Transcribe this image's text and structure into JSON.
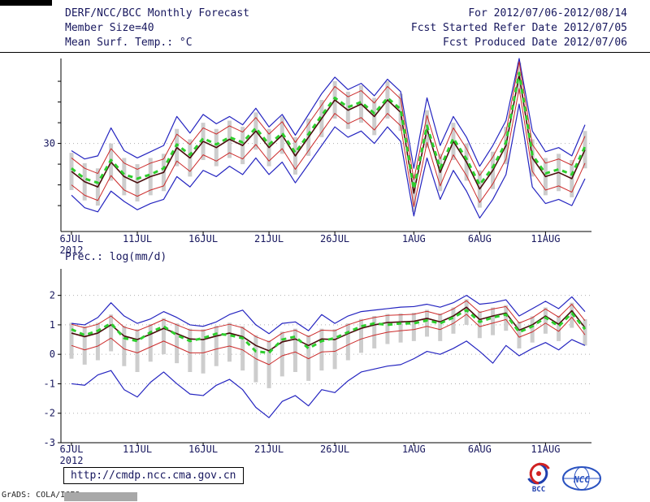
{
  "page": {
    "header": {
      "title": "DERF/NCC/BCC Monthly Forecast",
      "member_size": "Member Size=40",
      "temp_label": "Mean Surf. Temp.: °C",
      "date_range": "For 2012/07/06-2012/08/14",
      "refer_date": "Fcst Started Refer Date 2012/07/05",
      "produced_date": "Fcst Produced Date 2012/07/06"
    },
    "prec_label": "Prec.: log(mm/d)",
    "footer": {
      "url": "http://cmdp.ncc.cma.gov.cn",
      "credit": "GrADS: COLA/IGES",
      "bcc_label": "BCC",
      "ncc_label": "NCC"
    }
  },
  "colors": {
    "text": "#17175e",
    "axis": "#000000",
    "grid": "#b0b0b0",
    "envelope": "#2424c0",
    "std": "#cc2b2b",
    "mean": "#4a0c0c",
    "median": "#2ece2e",
    "bar": "#cdcdcd"
  },
  "chart_data": [
    {
      "type": "line",
      "title": "Mean Surf. Temp.: °C",
      "ylabel": "°C",
      "n_points": 40,
      "ylim": [
        21.5,
        38.2
      ],
      "x_axis_year": "2012",
      "x_ticks": [
        {
          "index": 0,
          "label": "6JUL"
        },
        {
          "index": 5,
          "label": "11JUL"
        },
        {
          "index": 10,
          "label": "16JUL"
        },
        {
          "index": 15,
          "label": "21JUL"
        },
        {
          "index": 20,
          "label": "26JUL"
        },
        {
          "index": 26,
          "label": "1AUG"
        },
        {
          "index": 31,
          "label": "6AUG"
        },
        {
          "index": 36,
          "label": "11AUG"
        }
      ],
      "y_ticks": [
        {
          "value": 24,
          "label": ""
        },
        {
          "value": 26,
          "label": ""
        },
        {
          "value": 28,
          "label": ""
        },
        {
          "value": 30,
          "label": "30"
        },
        {
          "value": 32,
          "label": ""
        },
        {
          "value": 34,
          "label": ""
        },
        {
          "value": 36,
          "label": ""
        }
      ],
      "series": [
        {
          "name": "ensemble-spread-bar",
          "type": "bar",
          "color": "#cdcdcd",
          "width": 5,
          "top": [
            29.1,
            28.1,
            27.6,
            30.0,
            28.6,
            28.0,
            28.6,
            29.0,
            31.4,
            30.4,
            32.0,
            31.4,
            32.2,
            31.6,
            33.0,
            31.4,
            32.6,
            30.6,
            32.4,
            34.2,
            36.0,
            35.0,
            35.6,
            34.4,
            36.0,
            34.8,
            27.0,
            33.2,
            29.0,
            32.0,
            30.0,
            27.4,
            29.2,
            31.6,
            37.8,
            30.4,
            28.6,
            29.0,
            28.4,
            31.2
          ],
          "bottom": [
            25.5,
            24.5,
            24.0,
            26.4,
            25.0,
            24.4,
            25.0,
            25.4,
            27.8,
            26.8,
            28.4,
            27.8,
            28.6,
            28.0,
            29.4,
            27.8,
            29.0,
            27.0,
            28.8,
            30.6,
            32.4,
            31.4,
            32.0,
            30.8,
            32.4,
            31.2,
            23.4,
            29.6,
            25.4,
            28.4,
            26.4,
            23.8,
            25.6,
            28.0,
            34.8,
            26.8,
            25.0,
            25.4,
            24.8,
            27.6
          ]
        },
        {
          "name": "ensemble-max",
          "type": "line",
          "color": "#2424c0",
          "width": 1.2,
          "values": [
            29.3,
            28.5,
            28.8,
            31.5,
            29.3,
            28.6,
            29.2,
            29.8,
            32.6,
            31.0,
            32.8,
            31.9,
            32.6,
            31.8,
            33.4,
            31.6,
            32.8,
            30.8,
            32.8,
            34.8,
            36.4,
            35.2,
            35.8,
            34.6,
            36.2,
            35.0,
            27.6,
            34.4,
            29.8,
            32.6,
            30.6,
            27.8,
            29.8,
            32.2,
            38.2,
            31.2,
            29.2,
            29.6,
            28.8,
            31.8
          ]
        },
        {
          "name": "ensemble-min",
          "type": "line",
          "color": "#2424c0",
          "width": 1.2,
          "values": [
            25.0,
            23.8,
            23.4,
            25.4,
            24.4,
            23.6,
            24.2,
            24.6,
            26.8,
            25.8,
            27.4,
            26.8,
            27.8,
            27.0,
            28.6,
            27.0,
            28.2,
            26.2,
            28.0,
            29.8,
            31.6,
            30.6,
            31.2,
            30.0,
            31.6,
            30.2,
            23.0,
            28.6,
            24.6,
            27.4,
            25.4,
            22.8,
            24.6,
            27.0,
            33.8,
            25.8,
            24.2,
            24.6,
            24.0,
            26.6
          ]
        },
        {
          "name": "mean-plus-std",
          "type": "line",
          "color": "#cc2b2b",
          "width": 1,
          "values": [
            28.6,
            27.6,
            27.1,
            29.5,
            28.1,
            27.5,
            28.1,
            28.5,
            30.9,
            29.9,
            31.5,
            30.9,
            31.7,
            31.1,
            32.5,
            30.9,
            32.1,
            30.1,
            31.9,
            33.7,
            35.5,
            34.5,
            35.1,
            33.9,
            35.5,
            34.3,
            26.5,
            32.7,
            28.5,
            31.5,
            29.5,
            26.9,
            28.7,
            31.1,
            37.9,
            29.9,
            28.1,
            28.5,
            27.9,
            30.7
          ]
        },
        {
          "name": "mean-minus-std",
          "type": "line",
          "color": "#cc2b2b",
          "width": 1,
          "values": [
            26.0,
            25.0,
            24.5,
            26.9,
            25.5,
            24.9,
            25.5,
            25.9,
            28.3,
            27.3,
            28.9,
            28.3,
            29.1,
            28.5,
            29.9,
            28.3,
            29.5,
            27.5,
            29.3,
            31.1,
            32.9,
            31.9,
            32.5,
            31.3,
            32.9,
            31.7,
            23.9,
            30.1,
            25.9,
            28.9,
            26.9,
            24.3,
            26.1,
            28.5,
            35.3,
            27.3,
            25.5,
            25.9,
            25.3,
            28.1
          ]
        },
        {
          "name": "ensemble-mean",
          "type": "line",
          "color": "#4a0c0c",
          "width": 1.6,
          "values": [
            27.3,
            26.3,
            25.8,
            28.2,
            26.8,
            26.2,
            26.8,
            27.2,
            29.6,
            28.6,
            30.2,
            29.6,
            30.4,
            29.8,
            31.2,
            29.6,
            30.8,
            28.8,
            30.6,
            32.4,
            34.2,
            33.2,
            33.8,
            32.6,
            34.2,
            33.0,
            25.2,
            31.4,
            27.2,
            30.2,
            28.2,
            25.6,
            27.4,
            29.8,
            36.6,
            28.6,
            26.8,
            27.2,
            26.6,
            29.4
          ]
        },
        {
          "name": "ensemble-median",
          "type": "line",
          "color": "#2ece2e",
          "width": 3,
          "dash": "6,5",
          "values": [
            27.6,
            26.6,
            26.2,
            28.4,
            27.0,
            26.6,
            27.0,
            27.6,
            29.9,
            28.9,
            30.5,
            29.9,
            30.6,
            30.1,
            31.5,
            29.9,
            31.0,
            29.1,
            30.9,
            32.7,
            34.4,
            33.5,
            34.0,
            32.9,
            34.4,
            33.3,
            25.6,
            31.7,
            27.6,
            30.5,
            28.5,
            26.0,
            27.7,
            30.1,
            36.8,
            28.9,
            27.1,
            27.5,
            27.0,
            29.7
          ]
        }
      ]
    },
    {
      "type": "line",
      "title": "Prec.: log(mm/d)",
      "ylabel": "log(mm/d)",
      "n_points": 40,
      "ylim": [
        -3,
        2.9
      ],
      "x_axis_year": "2012",
      "x_ticks": [
        {
          "index": 0,
          "label": "6JUL"
        },
        {
          "index": 5,
          "label": "11JUL"
        },
        {
          "index": 10,
          "label": "16JUL"
        },
        {
          "index": 15,
          "label": "21JUL"
        },
        {
          "index": 20,
          "label": "26JUL"
        },
        {
          "index": 26,
          "label": "1AUG"
        },
        {
          "index": 31,
          "label": "6AUG"
        },
        {
          "index": 36,
          "label": "11AUG"
        }
      ],
      "y_ticks": [
        {
          "value": -3,
          "label": "-3"
        },
        {
          "value": -2,
          "label": "-2"
        },
        {
          "value": -1,
          "label": "-1"
        },
        {
          "value": 0,
          "label": "0"
        },
        {
          "value": 1,
          "label": "1"
        },
        {
          "value": 2,
          "label": "2"
        }
      ],
      "series": [
        {
          "name": "ensemble-spread-bar",
          "type": "bar",
          "color": "#cdcdcd",
          "width": 5,
          "top": [
            1.07,
            0.95,
            1.07,
            1.35,
            0.97,
            0.85,
            1.03,
            1.23,
            1.05,
            0.87,
            0.85,
            0.97,
            1.07,
            0.95,
            0.65,
            0.47,
            0.77,
            0.87,
            0.65,
            0.87,
            0.85,
            1.05,
            1.2,
            1.3,
            1.37,
            1.39,
            1.41,
            1.51,
            1.39,
            1.59,
            1.87,
            1.47,
            1.59,
            1.67,
            1.11,
            1.29,
            1.59,
            1.31,
            1.75,
            1.19
          ],
          "bottom": [
            -0.15,
            -0.35,
            -0.2,
            0.1,
            -0.4,
            -0.6,
            -0.25,
            0.0,
            -0.3,
            -0.6,
            -0.65,
            -0.4,
            -0.25,
            -0.55,
            -0.95,
            -1.15,
            -0.75,
            -0.6,
            -0.9,
            -0.55,
            -0.5,
            -0.2,
            0.05,
            0.2,
            0.35,
            0.4,
            0.45,
            0.6,
            0.45,
            0.7,
            1.0,
            0.55,
            0.65,
            0.8,
            0.2,
            0.4,
            0.7,
            0.45,
            0.9,
            0.3
          ]
        },
        {
          "name": "ensemble-max",
          "type": "line",
          "color": "#2424c0",
          "width": 1.2,
          "values": [
            1.05,
            1.0,
            1.25,
            1.75,
            1.3,
            1.05,
            1.2,
            1.45,
            1.25,
            1.0,
            0.95,
            1.1,
            1.35,
            1.5,
            1.0,
            0.7,
            1.05,
            1.1,
            0.8,
            1.35,
            1.05,
            1.3,
            1.45,
            1.5,
            1.55,
            1.6,
            1.62,
            1.7,
            1.6,
            1.75,
            2.0,
            1.7,
            1.75,
            1.85,
            1.3,
            1.55,
            1.8,
            1.55,
            1.95,
            1.45
          ]
        },
        {
          "name": "ensemble-min",
          "type": "line",
          "color": "#2424c0",
          "width": 1.2,
          "values": [
            -1.0,
            -1.05,
            -0.7,
            -0.55,
            -1.2,
            -1.45,
            -0.95,
            -0.6,
            -1.0,
            -1.35,
            -1.4,
            -1.05,
            -0.85,
            -1.2,
            -1.8,
            -2.15,
            -1.6,
            -1.4,
            -1.75,
            -1.2,
            -1.3,
            -0.9,
            -0.6,
            -0.5,
            -0.4,
            -0.35,
            -0.15,
            0.1,
            0.0,
            0.2,
            0.45,
            0.1,
            -0.3,
            0.3,
            -0.05,
            0.2,
            0.4,
            0.15,
            0.5,
            0.3
          ]
        },
        {
          "name": "mean-plus-std",
          "type": "line",
          "color": "#cc2b2b",
          "width": 1,
          "values": [
            1.02,
            0.9,
            1.02,
            1.3,
            0.92,
            0.8,
            0.98,
            1.18,
            1.0,
            0.82,
            0.8,
            0.92,
            1.02,
            0.9,
            0.6,
            0.42,
            0.72,
            0.82,
            0.6,
            0.82,
            0.8,
            1.0,
            1.15,
            1.25,
            1.32,
            1.34,
            1.36,
            1.46,
            1.34,
            1.54,
            1.82,
            1.42,
            1.54,
            1.62,
            1.06,
            1.24,
            1.54,
            1.26,
            1.7,
            1.14
          ]
        },
        {
          "name": "mean-minus-std",
          "type": "line",
          "color": "#cc2b2b",
          "width": 1,
          "values": [
            0.3,
            0.15,
            0.28,
            0.55,
            0.18,
            0.05,
            0.25,
            0.45,
            0.25,
            0.05,
            0.05,
            0.18,
            0.28,
            0.15,
            -0.15,
            -0.35,
            -0.05,
            0.08,
            -0.15,
            0.08,
            0.1,
            0.32,
            0.52,
            0.65,
            0.75,
            0.8,
            0.84,
            0.95,
            0.84,
            1.05,
            1.36,
            0.94,
            1.06,
            1.18,
            0.58,
            0.76,
            1.06,
            0.78,
            1.26,
            0.66
          ]
        },
        {
          "name": "ensemble-mean",
          "type": "line",
          "color": "#4a0c0c",
          "width": 1.6,
          "values": [
            0.72,
            0.6,
            0.72,
            1.0,
            0.62,
            0.5,
            0.68,
            0.88,
            0.7,
            0.52,
            0.5,
            0.62,
            0.72,
            0.6,
            0.3,
            0.12,
            0.42,
            0.52,
            0.3,
            0.52,
            0.5,
            0.7,
            0.88,
            1.0,
            1.08,
            1.1,
            1.12,
            1.22,
            1.1,
            1.3,
            1.6,
            1.18,
            1.3,
            1.4,
            0.82,
            1.0,
            1.3,
            1.02,
            1.48,
            0.9
          ]
        },
        {
          "name": "ensemble-median",
          "type": "line",
          "color": "#2ece2e",
          "width": 3,
          "dash": "6,5",
          "values": [
            0.85,
            0.65,
            0.8,
            1.05,
            0.55,
            0.45,
            0.75,
            0.95,
            0.65,
            0.45,
            0.55,
            0.7,
            0.65,
            0.55,
            0.1,
            0.05,
            0.5,
            0.6,
            0.2,
            0.45,
            0.55,
            0.75,
            0.95,
            1.05,
            1.0,
            1.05,
            1.05,
            1.15,
            1.05,
            1.25,
            1.5,
            1.1,
            1.25,
            1.35,
            0.75,
            0.95,
            1.25,
            0.95,
            1.4,
            0.85
          ]
        }
      ]
    }
  ]
}
